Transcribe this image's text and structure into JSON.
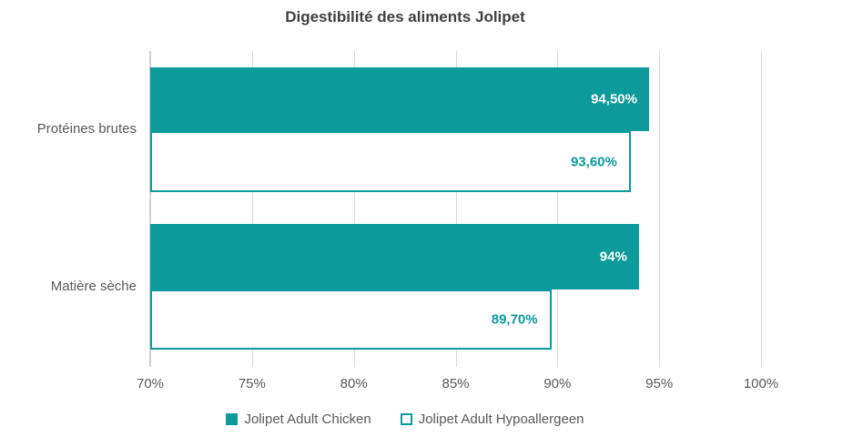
{
  "title": "Digestibilité des aliments Jolipet",
  "chart_data": {
    "type": "bar",
    "orientation": "horizontal",
    "title": "Digestibilité des aliments Jolipet",
    "categories": [
      "Protéines brutes",
      "Matière sèche"
    ],
    "series": [
      {
        "name": "Jolipet Adult Chicken",
        "style": "filled",
        "values": [
          94.5,
          94.0
        ],
        "labels": [
          "94,50%",
          "94%"
        ]
      },
      {
        "name": "Jolipet Adult Hypoallergeen",
        "style": "outlined",
        "values": [
          93.6,
          89.7
        ],
        "labels": [
          "93,60%",
          "89,70%"
        ]
      }
    ],
    "xlabel": "",
    "ylabel": "",
    "xlim": [
      70,
      100
    ],
    "axis_ticks": [
      "70%",
      "75%",
      "80%",
      "85%",
      "90%",
      "95%",
      "100%"
    ],
    "grid": true,
    "legend_position": "bottom"
  },
  "colors": {
    "accent": "#0d9a9a",
    "grid": "#d9d9d9",
    "axis_text": "#595959",
    "title_text": "#3f3f3f",
    "label_on_filled_bar": "#ffffff",
    "label_on_outlined_bar": "#0d9a9a",
    "background": "#ffffff"
  }
}
